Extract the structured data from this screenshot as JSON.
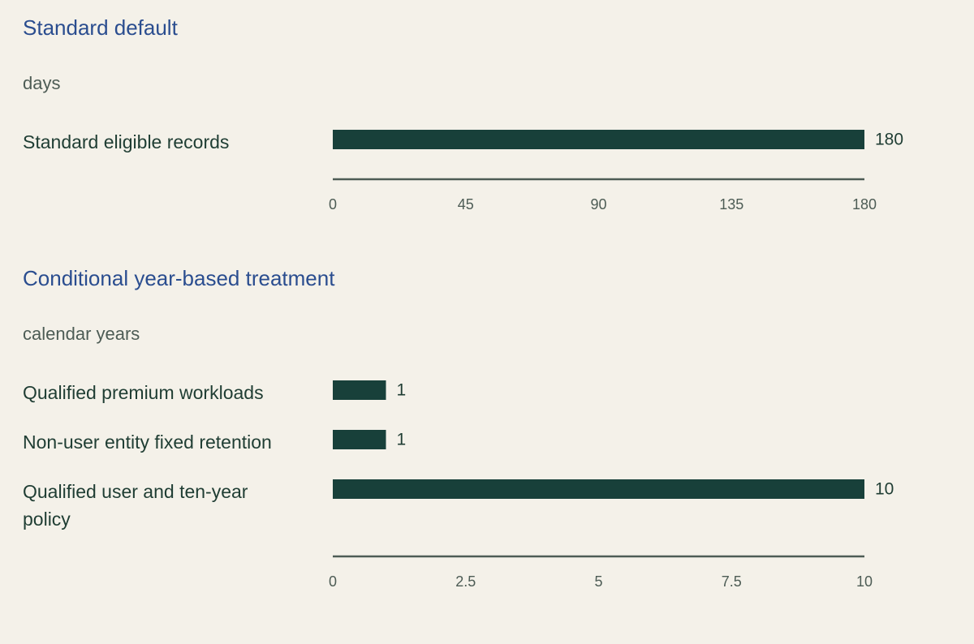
{
  "chart_data": [
    {
      "type": "bar",
      "orientation": "horizontal",
      "title": "Standard default",
      "unit_label": "days",
      "categories": [
        "Standard eligible records"
      ],
      "values": [
        180
      ],
      "value_labels": [
        "180"
      ],
      "xlim": [
        0,
        180
      ],
      "ticks": [
        0,
        45,
        90,
        135,
        180
      ],
      "tick_labels": [
        "0",
        "45",
        "90",
        "135",
        "180"
      ],
      "grid": false,
      "colors": {
        "bar": "#18403a",
        "title": "#2a4d8f"
      }
    },
    {
      "type": "bar",
      "orientation": "horizontal",
      "title": "Conditional year-based treatment",
      "unit_label": "calendar years",
      "categories": [
        "Qualified premium workloads",
        "Non-user entity fixed retention",
        "Qualified user and ten-year policy"
      ],
      "values": [
        1,
        1,
        10
      ],
      "value_labels": [
        "1",
        "1",
        "10"
      ],
      "xlim": [
        0,
        10
      ],
      "ticks": [
        0,
        2.5,
        5,
        7.5,
        10
      ],
      "tick_labels": [
        "0",
        "2.5",
        "5",
        "7.5",
        "10"
      ],
      "grid": false,
      "colors": {
        "bar": "#18403a",
        "title": "#2a4d8f"
      }
    }
  ]
}
